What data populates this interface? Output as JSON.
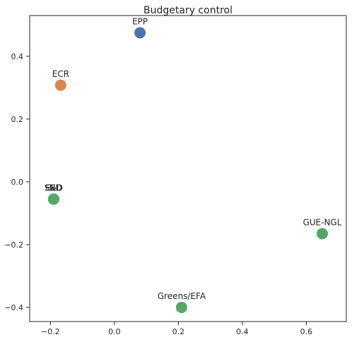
{
  "chart_data": {
    "type": "scatter",
    "title": "Budgetary control",
    "xlabel": "",
    "ylabel": "",
    "xlim": [
      -0.265,
      0.725
    ],
    "ylim": [
      -0.445,
      0.53
    ],
    "grid": false,
    "x_ticks": [
      -0.2,
      0.0,
      0.2,
      0.4,
      0.6
    ],
    "x_tick_labels": [
      "−0.2",
      "0.0",
      "0.2",
      "0.4",
      "0.6"
    ],
    "y_ticks": [
      -0.4,
      -0.2,
      0.0,
      0.2,
      0.4
    ],
    "y_tick_labels": [
      "−0.4",
      "−0.2",
      "0.0",
      "0.2",
      "0.4"
    ],
    "points": [
      {
        "label": "EPP",
        "x": 0.08,
        "y": 0.475,
        "color": "#4c72b0"
      },
      {
        "label": "ECR",
        "x": -0.168,
        "y": 0.308,
        "color": "#dd8452"
      },
      {
        "label": "NI",
        "x": -0.19,
        "y": -0.055,
        "color": "#55a868"
      },
      {
        "label": "EFD",
        "x": -0.19,
        "y": -0.055,
        "color": "#55a868"
      },
      {
        "label": "S&D",
        "x": -0.19,
        "y": -0.055,
        "color": "#55a868"
      },
      {
        "label": "GUE-NGL",
        "x": 0.65,
        "y": -0.165,
        "color": "#55a868"
      },
      {
        "label": "Greens/EFA",
        "x": 0.21,
        "y": -0.4,
        "color": "#55a868"
      }
    ]
  }
}
